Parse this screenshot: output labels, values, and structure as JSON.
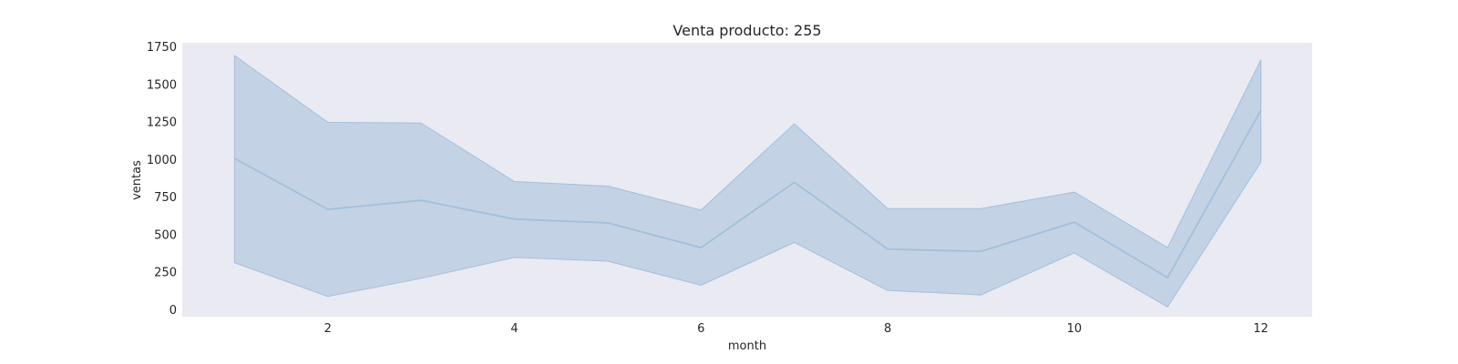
{
  "chart_data": {
    "type": "line",
    "title": "Venta producto: 255",
    "xlabel": "month",
    "ylabel": "ventas",
    "xlim": [
      0.44,
      12.55
    ],
    "ylim": [
      -50,
      1775
    ],
    "xticks": [
      2,
      4,
      6,
      8,
      10,
      12
    ],
    "yticks": [
      0,
      250,
      500,
      750,
      1000,
      1250,
      1500,
      1750
    ],
    "grid": false,
    "colors": {
      "background": "#eaeaf2",
      "line": "#a2bfdc",
      "band": "#c3d3e5"
    },
    "series": [
      {
        "x": [
          1,
          2,
          3,
          4,
          5,
          6,
          7,
          8,
          9,
          10,
          11,
          12
        ],
        "y": [
          1005,
          665,
          725,
          600,
          575,
          410,
          845,
          400,
          385,
          580,
          210,
          1325
        ],
        "lower": [
          310,
          85,
          205,
          345,
          320,
          160,
          445,
          125,
          95,
          375,
          15,
          980
        ],
        "upper": [
          1690,
          1245,
          1240,
          850,
          820,
          660,
          1235,
          670,
          670,
          780,
          410,
          1660
        ]
      }
    ]
  }
}
